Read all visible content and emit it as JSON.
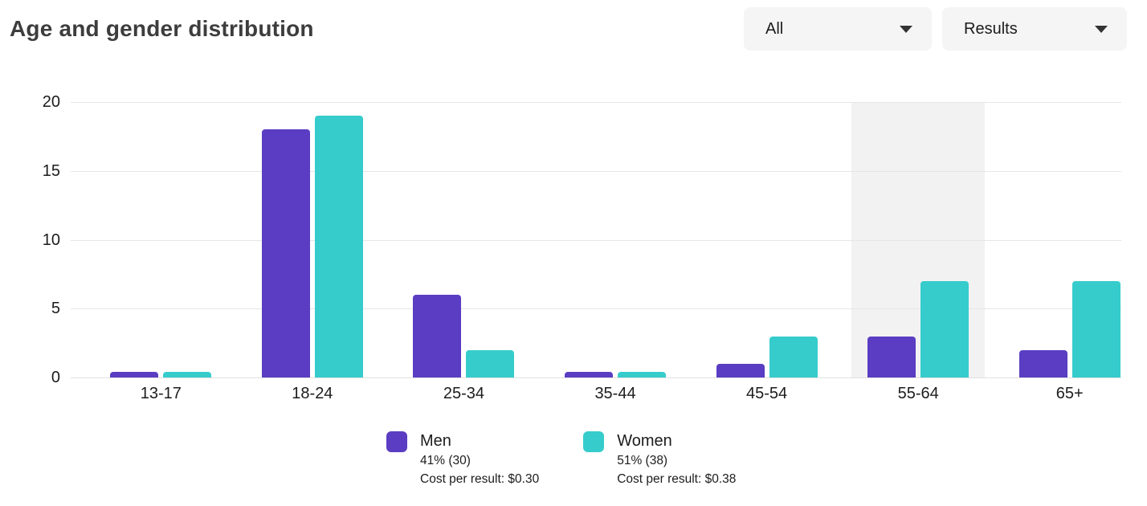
{
  "header": {
    "title": "Age and gender distribution",
    "dropdowns": [
      {
        "value": "All"
      },
      {
        "value": "Results"
      }
    ]
  },
  "chart_data": {
    "type": "bar",
    "title": "Age and gender distribution",
    "categories": [
      "13-17",
      "18-24",
      "25-34",
      "35-44",
      "45-54",
      "55-64",
      "65+"
    ],
    "series": [
      {
        "name": "Men",
        "color": "#5a3dc2",
        "values": [
          0.4,
          18,
          6,
          0.4,
          1,
          3,
          2
        ]
      },
      {
        "name": "Women",
        "color": "#36cccc",
        "values": [
          0.4,
          19,
          2,
          0.4,
          3,
          7,
          7
        ]
      }
    ],
    "ylim": [
      0,
      20
    ],
    "yticks": [
      0,
      5,
      10,
      15,
      20
    ],
    "grid": true,
    "highlighted_category": "55-64",
    "legend_position": "bottom"
  },
  "legend": {
    "items": [
      {
        "name": "Men",
        "share": "41% (30)",
        "cost": "Cost per result: $0.30",
        "color": "#5a3dc2"
      },
      {
        "name": "Women",
        "share": "51% (38)",
        "cost": "Cost per result: $0.38",
        "color": "#36cccc"
      }
    ]
  },
  "colors": {
    "men": "#5a3dc2",
    "women": "#36cccc",
    "highlight_band": "#f2f2f2",
    "gridline": "#e6e6e6"
  }
}
